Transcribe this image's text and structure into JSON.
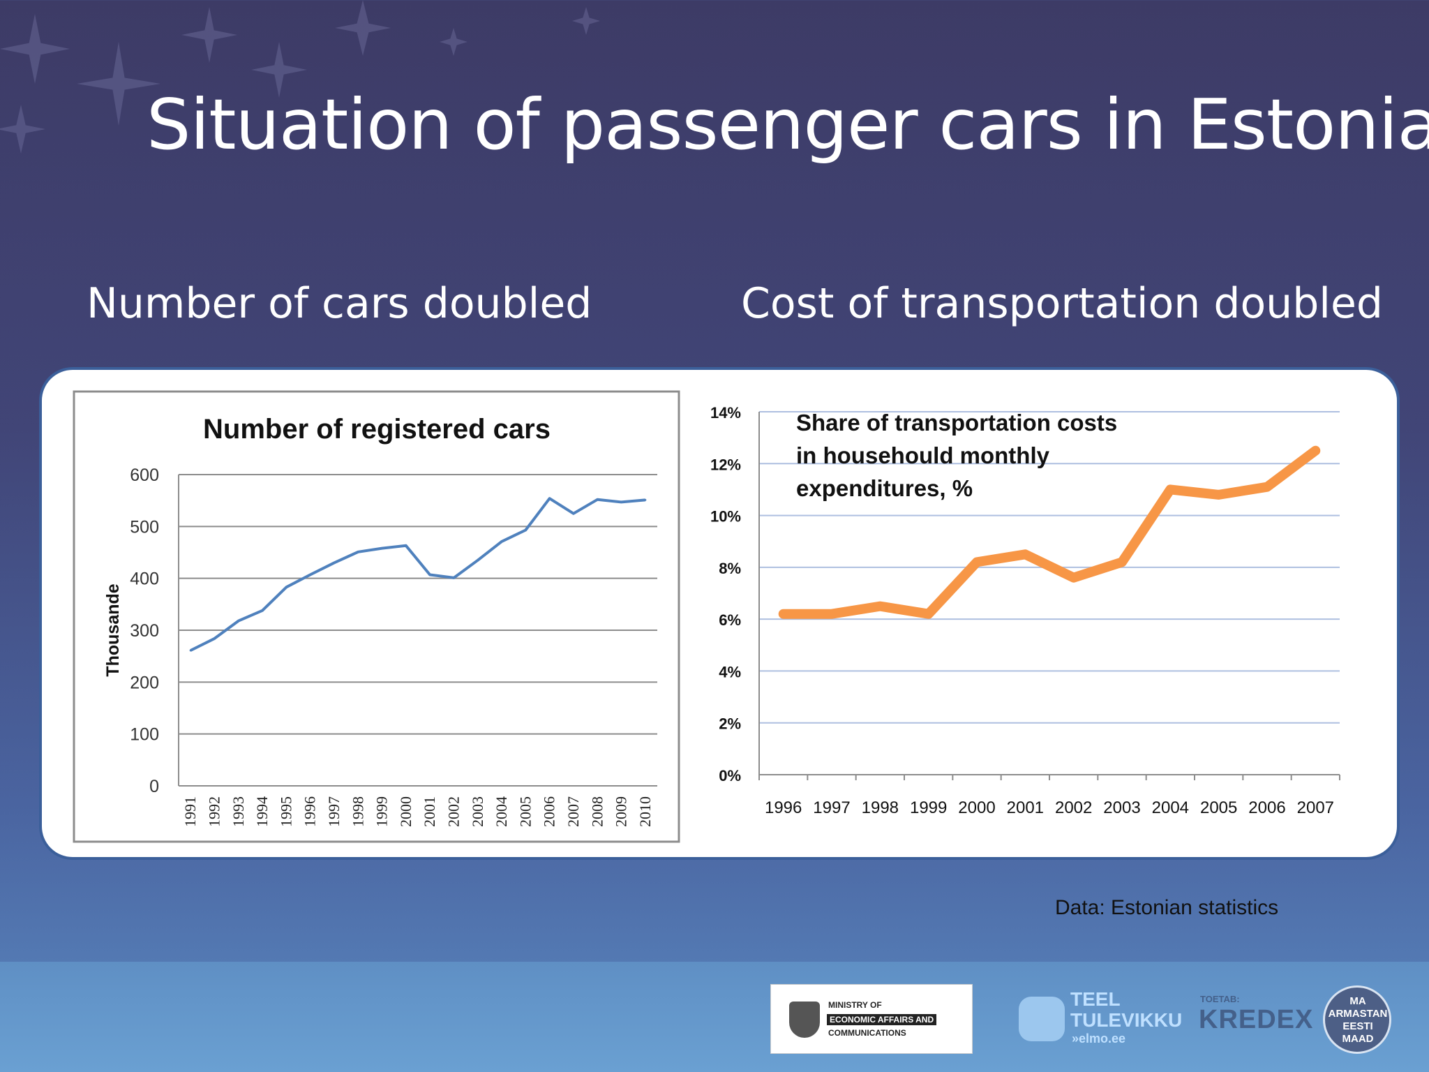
{
  "slide": {
    "title": "Situation of passenger cars in Estonia",
    "subtitle_left": "Number of cars doubled",
    "subtitle_right": "Cost of transportation doubled",
    "source": "Data: Estonian statistics"
  },
  "logos": {
    "ministry": [
      "MINISTRY OF",
      "ECONOMIC AFFAIRS AND",
      "COMMUNICATIONS"
    ],
    "teel": [
      "TEEL",
      "TULEVIKKU",
      "»elmo.ee"
    ],
    "kredex": [
      "TOETAB:",
      "KREDEX"
    ],
    "mae": [
      "MA",
      "ARMASTAN",
      "EESTI",
      "MAAD"
    ]
  },
  "colors": {
    "left_series": "#4f81bd",
    "right_series": "#f79646",
    "right_grid": "#aebfe0"
  },
  "chart_data": [
    {
      "type": "line",
      "title": "Number of registered cars",
      "xlabel": "",
      "ylabel": "Thousande",
      "ylim": [
        0,
        600
      ],
      "yticks": [
        0,
        100,
        200,
        300,
        400,
        500,
        600
      ],
      "grid": true,
      "categories": [
        "1991",
        "1992",
        "1993",
        "1994",
        "1995",
        "1996",
        "1997",
        "1998",
        "1999",
        "2000",
        "2001",
        "2002",
        "2003",
        "2004",
        "2005",
        "2006",
        "2007",
        "2008",
        "2009",
        "2010"
      ],
      "series": [
        {
          "values": [
            261,
            284,
            318,
            338,
            383,
            407,
            430,
            451,
            458,
            463,
            407,
            401,
            435,
            471,
            493,
            554,
            525,
            552,
            547,
            551
          ]
        }
      ]
    },
    {
      "type": "line",
      "title": "Share of transportation costs in househould monthly expenditures, %",
      "title_lines": [
        "Share of transportation costs",
        "in househould monthly",
        "expenditures, %"
      ],
      "xlabel": "",
      "ylabel": "",
      "ylim": [
        0,
        14
      ],
      "yticks": [
        "0%",
        "2%",
        "4%",
        "6%",
        "8%",
        "10%",
        "12%",
        "14%"
      ],
      "grid": true,
      "categories": [
        "1996",
        "1997",
        "1998",
        "1999",
        "2000",
        "2001",
        "2002",
        "2003",
        "2004",
        "2005",
        "2006",
        "2007"
      ],
      "series": [
        {
          "values": [
            6.2,
            6.2,
            6.5,
            6.2,
            8.2,
            8.5,
            7.6,
            8.2,
            11.0,
            10.8,
            11.1,
            12.5
          ]
        }
      ]
    }
  ]
}
